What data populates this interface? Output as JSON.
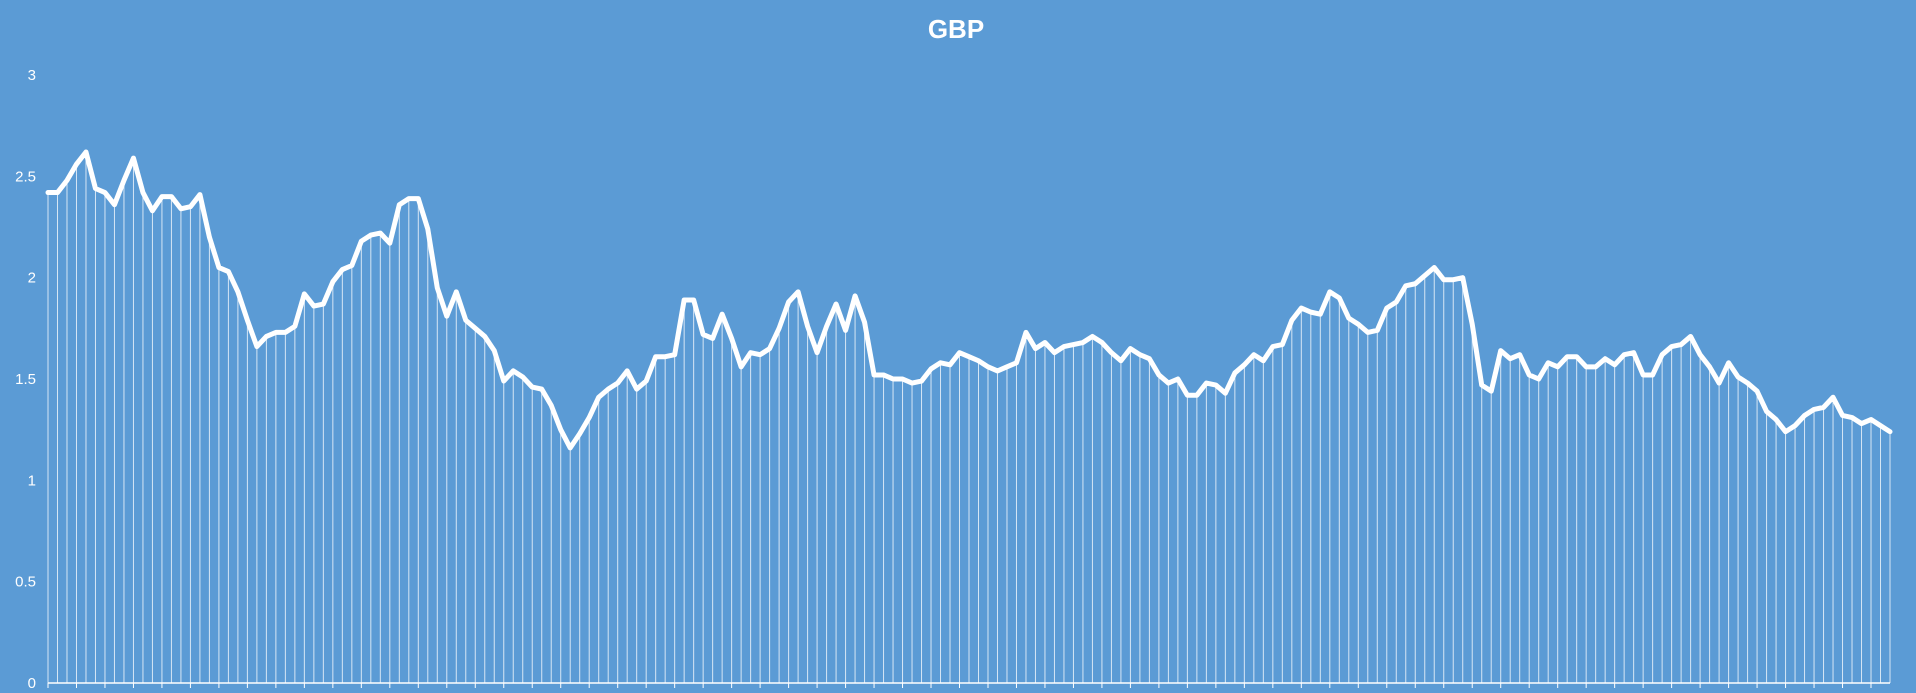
{
  "chart_data": {
    "type": "line",
    "title": "GBP",
    "xlabel": "",
    "ylabel": "",
    "ylim": [
      0,
      3
    ],
    "y_ticks": [
      "0",
      "0.5",
      "1",
      "1.5",
      "2",
      "2.5",
      "3"
    ],
    "grid": false,
    "legend": "none",
    "style": "line with drop-lines to the x-axis",
    "series": [
      {
        "values": [
          2.42,
          2.42,
          2.48,
          2.56,
          2.62,
          2.44,
          2.42,
          2.36,
          2.48,
          2.59,
          2.42,
          2.33,
          2.4,
          2.4,
          2.34,
          2.35,
          2.41,
          2.2,
          2.05,
          2.03,
          1.93,
          1.79,
          1.66,
          1.71,
          1.73,
          1.73,
          1.76,
          1.92,
          1.86,
          1.87,
          1.98,
          2.04,
          2.06,
          2.18,
          2.21,
          2.22,
          2.17,
          2.36,
          2.39,
          2.39,
          2.24,
          1.95,
          1.81,
          1.93,
          1.79,
          1.75,
          1.71,
          1.64,
          1.49,
          1.54,
          1.51,
          1.46,
          1.45,
          1.37,
          1.25,
          1.16,
          1.23,
          1.31,
          1.41,
          1.45,
          1.48,
          1.54,
          1.45,
          1.49,
          1.61,
          1.61,
          1.62,
          1.89,
          1.89,
          1.72,
          1.7,
          1.82,
          1.7,
          1.56,
          1.63,
          1.62,
          1.65,
          1.75,
          1.88,
          1.93,
          1.76,
          1.63,
          1.76,
          1.87,
          1.74,
          1.91,
          1.78,
          1.52,
          1.52,
          1.5,
          1.5,
          1.48,
          1.49,
          1.55,
          1.58,
          1.57,
          1.63,
          1.61,
          1.59,
          1.56,
          1.54,
          1.56,
          1.58,
          1.73,
          1.65,
          1.68,
          1.63,
          1.66,
          1.67,
          1.68,
          1.71,
          1.68,
          1.63,
          1.59,
          1.65,
          1.62,
          1.6,
          1.52,
          1.48,
          1.5,
          1.42,
          1.42,
          1.48,
          1.47,
          1.43,
          1.53,
          1.57,
          1.62,
          1.59,
          1.66,
          1.67,
          1.79,
          1.85,
          1.83,
          1.82,
          1.93,
          1.9,
          1.8,
          1.77,
          1.73,
          1.74,
          1.85,
          1.88,
          1.96,
          1.97,
          2.01,
          2.05,
          1.99,
          1.99,
          2.0,
          1.77,
          1.47,
          1.44,
          1.64,
          1.6,
          1.62,
          1.52,
          1.5,
          1.58,
          1.56,
          1.61,
          1.61,
          1.56,
          1.56,
          1.6,
          1.57,
          1.62,
          1.63,
          1.52,
          1.52,
          1.62,
          1.66,
          1.67,
          1.71,
          1.62,
          1.56,
          1.48,
          1.58,
          1.51,
          1.48,
          1.44,
          1.34,
          1.3,
          1.24,
          1.27,
          1.32,
          1.35,
          1.36,
          1.41,
          1.32,
          1.31,
          1.28,
          1.3,
          1.27,
          1.24
        ]
      }
    ]
  },
  "colors": {
    "background": "#5b9bd5",
    "line": "#ffffff",
    "drop_lines": "#ffffff",
    "axis": "#ffffff",
    "text": "#ffffff"
  }
}
